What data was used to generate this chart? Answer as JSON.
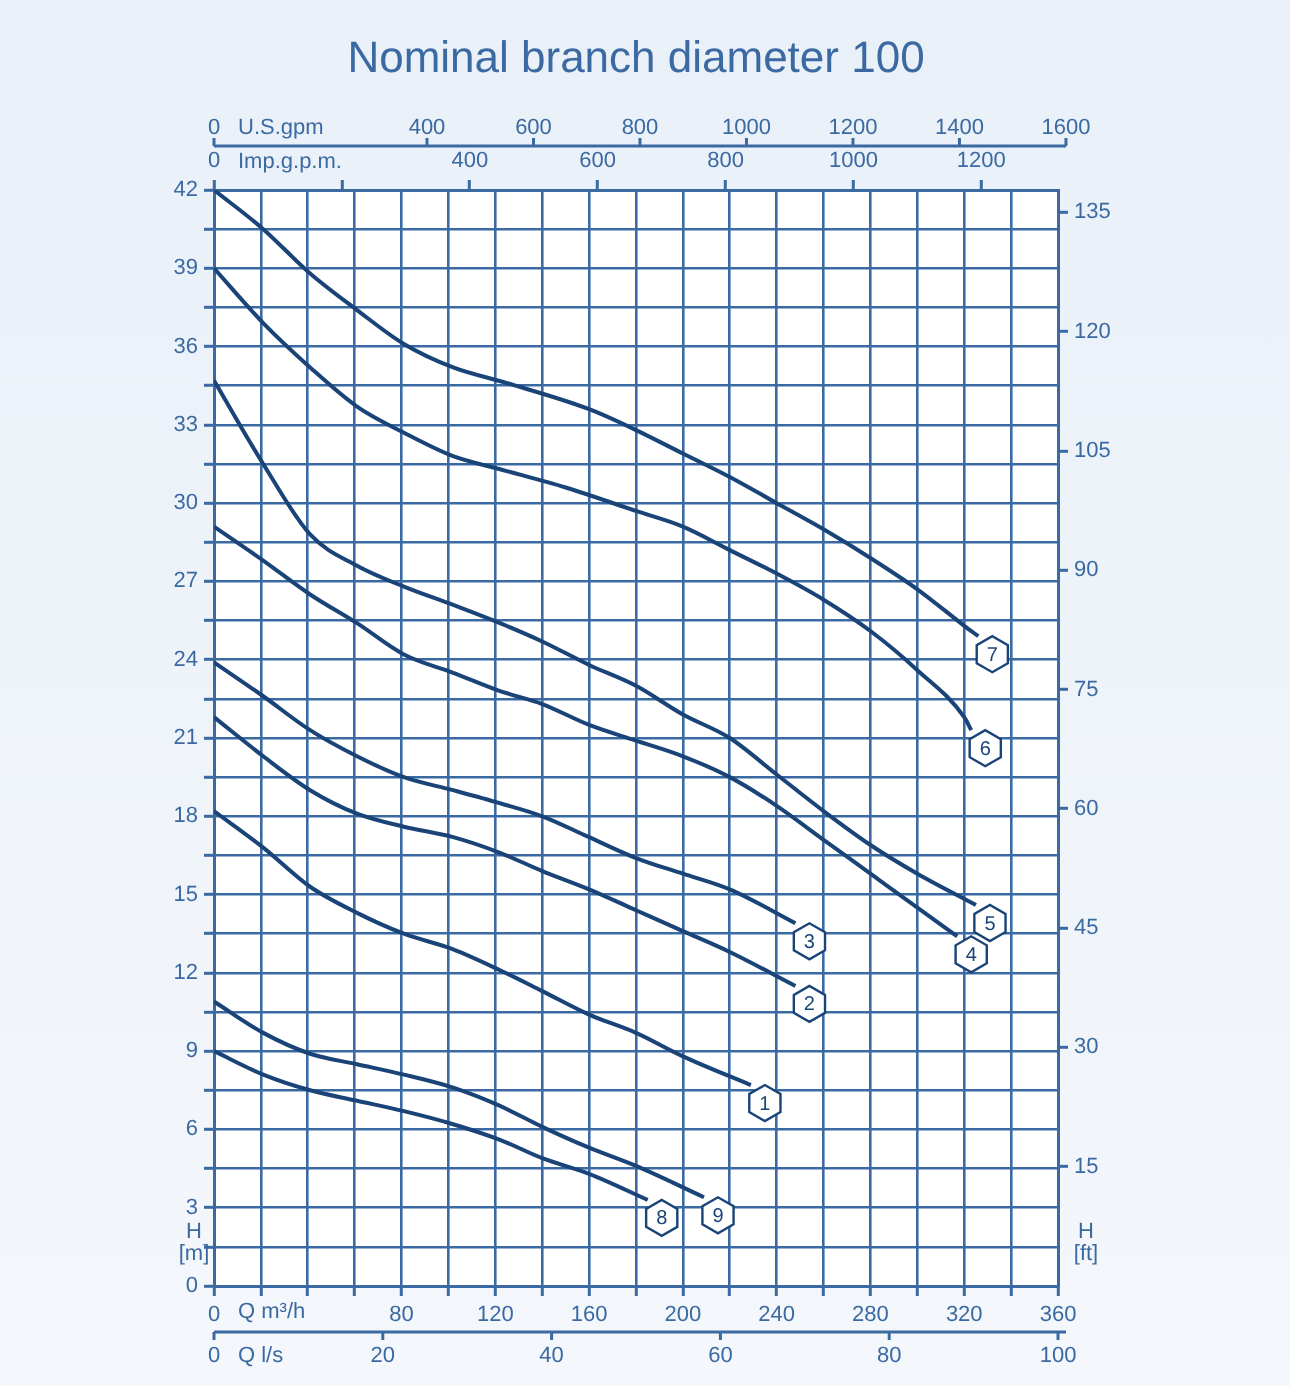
{
  "chart_data": {
    "type": "line",
    "title": "Nominal branch diameter 100",
    "xlabel": "Q m³/h",
    "ylabel": "H [m]",
    "y2label": "H [ft]",
    "x2label": "Imp.g.p.m.",
    "xlim": [
      0,
      360
    ],
    "xticks": [
      0,
      {
        "value": 20,
        "label": null
      },
      {
        "value": 40,
        "label": null
      },
      {
        "value": 60,
        "label": null
      },
      80,
      {
        "value": 100,
        "label": null
      },
      120,
      {
        "value": 140,
        "label": null
      },
      160,
      {
        "value": 180,
        "label": null
      },
      200,
      {
        "value": 220,
        "label": null
      },
      240,
      {
        "value": 260,
        "label": null
      },
      280,
      {
        "value": 300,
        "label": null
      },
      320,
      {
        "value": 340,
        "label": null
      },
      360
    ],
    "ylim": [
      0,
      42
    ],
    "yticks": [
      0,
      {
        "value": 1.5,
        "label": null
      },
      3,
      {
        "value": 4.5,
        "label": null
      },
      6,
      {
        "value": 7.5,
        "label": null
      },
      9,
      {
        "value": 10.5,
        "label": null
      },
      12,
      {
        "value": 13.5,
        "label": null
      },
      15,
      {
        "value": 16.5,
        "label": null
      },
      18,
      {
        "value": 19.5,
        "label": null
      },
      21,
      {
        "value": 22.5,
        "label": null
      },
      24,
      {
        "value": 25.5,
        "label": null
      },
      27,
      {
        "value": 28.5,
        "label": null
      },
      30,
      {
        "value": 31.5,
        "label": null
      },
      33,
      {
        "value": 34.5,
        "label": null
      },
      36,
      {
        "value": 37.5,
        "label": null
      },
      39,
      {
        "value": 40.5,
        "label": null
      },
      42
    ],
    "y2lim": [
      0,
      137.8
    ],
    "y2ticks": [
      15,
      30,
      45,
      60,
      75,
      90,
      105,
      120,
      135
    ],
    "x2lim": [
      0,
      1320
    ],
    "x2ticks": [
      0,
      {
        "value": 200,
        "label": null
      },
      400,
      600,
      800,
      1000,
      1200
    ],
    "annotations": [
      "0",
      "U.S.gpm",
      "400",
      "600",
      "800",
      "1000",
      "1200",
      "1400",
      "1600",
      "0",
      "Q l/s",
      "20",
      "40",
      "60",
      "80",
      "100"
    ],
    "grid": true,
    "marker": "none",
    "line_style": "solid",
    "series": [
      {
        "name": "1",
        "color": "#1a4478",
        "x": [
          0,
          21,
          41,
          61,
          81,
          102,
          122,
          140,
          160,
          180,
          200,
          229
        ],
        "values": [
          18.2,
          16.8,
          15.3,
          14.3,
          13.5,
          12.9,
          12.1,
          11.3,
          10.4,
          9.7,
          8.8,
          7.7
        ]
      },
      {
        "name": "2",
        "color": "#1a4478",
        "x": [
          0,
          21,
          41,
          61,
          81,
          102,
          122,
          140,
          160,
          180,
          200,
          220,
          248
        ],
        "values": [
          21.8,
          20.3,
          19.0,
          18.1,
          17.6,
          17.2,
          16.6,
          15.9,
          15.2,
          14.4,
          13.6,
          12.8,
          11.5
        ]
      },
      {
        "name": "3",
        "color": "#1a4478",
        "x": [
          0,
          21,
          41,
          61,
          81,
          102,
          122,
          140,
          160,
          180,
          200,
          220,
          248
        ],
        "values": [
          23.9,
          22.6,
          21.3,
          20.3,
          19.5,
          19.0,
          18.5,
          18.0,
          17.2,
          16.4,
          15.8,
          15.2,
          13.9
        ]
      },
      {
        "name": "4",
        "color": "#1a4478",
        "x": [
          0,
          21,
          41,
          61,
          81,
          102,
          122,
          140,
          160,
          180,
          200,
          220,
          240,
          260,
          280,
          300,
          317
        ],
        "values": [
          29.1,
          27.8,
          26.5,
          25.4,
          24.2,
          23.5,
          22.8,
          22.3,
          21.5,
          20.9,
          20.3,
          19.5,
          18.4,
          17.1,
          15.8,
          14.5,
          13.4
        ]
      },
      {
        "name": "5",
        "color": "#1a4478",
        "x": [
          0,
          21,
          41,
          61,
          81,
          102,
          122,
          140,
          160,
          180,
          200,
          220,
          240,
          260,
          280,
          300,
          325
        ],
        "values": [
          34.7,
          31.5,
          28.8,
          27.6,
          26.8,
          26.1,
          25.4,
          24.7,
          23.8,
          23.0,
          21.9,
          21.0,
          19.6,
          18.2,
          16.9,
          15.8,
          14.6
        ]
      },
      {
        "name": "6",
        "color": "#1a4478",
        "x": [
          0,
          21,
          41,
          61,
          81,
          102,
          122,
          150,
          180,
          200,
          220,
          240,
          260,
          280,
          300,
          320,
          323
        ],
        "values": [
          39.0,
          36.9,
          35.2,
          33.7,
          32.7,
          31.8,
          31.3,
          30.6,
          29.7,
          29.1,
          28.2,
          27.3,
          26.3,
          25.1,
          23.6,
          21.8,
          21.3
        ]
      },
      {
        "name": "7",
        "color": "#1a4478",
        "x": [
          0,
          21,
          41,
          61,
          81,
          102,
          125,
          160,
          180,
          200,
          220,
          240,
          260,
          280,
          300,
          320,
          326
        ],
        "values": [
          42.0,
          40.5,
          38.8,
          37.4,
          36.1,
          35.2,
          34.6,
          33.6,
          32.8,
          31.9,
          31.0,
          30.0,
          29.0,
          27.9,
          26.7,
          25.3,
          24.9
        ]
      },
      {
        "name": "8",
        "color": "#1a4478",
        "x": [
          0,
          21,
          41,
          61,
          81,
          102,
          122,
          140,
          160,
          185
        ],
        "values": [
          9.0,
          8.1,
          7.5,
          7.1,
          6.7,
          6.2,
          5.6,
          4.9,
          4.3,
          3.3
        ]
      },
      {
        "name": "9",
        "color": "#1a4478",
        "x": [
          0,
          21,
          41,
          61,
          81,
          102,
          122,
          140,
          160,
          180,
          209
        ],
        "values": [
          10.9,
          9.7,
          8.9,
          8.5,
          8.1,
          7.6,
          6.9,
          6.1,
          5.3,
          4.6,
          3.4
        ]
      }
    ]
  }
}
